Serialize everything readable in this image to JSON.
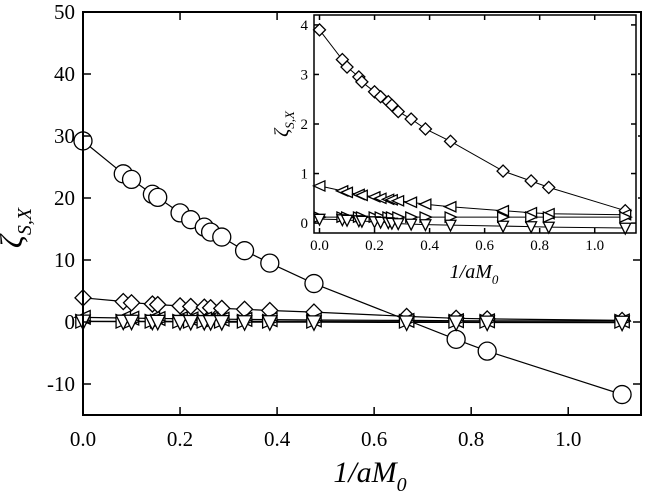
{
  "chart_data": [
    {
      "type": "scatter",
      "panel": "main",
      "xlabel": "1/aM",
      "xlabel_sub": "0",
      "ylabel": "ζ",
      "ylabel_sub": "S,X",
      "xlim": [
        0.0,
        1.15
      ],
      "ylim": [
        -15,
        50
      ],
      "xticks": [
        0.0,
        0.2,
        0.4,
        0.6,
        0.8,
        1.0
      ],
      "xtick_labels": [
        "0.0",
        "0.2",
        "0.4",
        "0.6",
        "0.8",
        "1.0"
      ],
      "yticks": [
        -10,
        0,
        10,
        20,
        30,
        40,
        50
      ],
      "ytick_labels": [
        "-10",
        "0",
        "10",
        "20",
        "30",
        "40",
        "50"
      ],
      "series": [
        {
          "name": "circle",
          "marker": "circle",
          "x": [
            0.0,
            0.083,
            0.1,
            0.143,
            0.154,
            0.2,
            0.222,
            0.25,
            0.263,
            0.286,
            0.333,
            0.385,
            0.476,
            0.769,
            0.833,
            1.111
          ],
          "y": [
            29.2,
            23.9,
            23.0,
            20.6,
            20.1,
            17.6,
            16.5,
            15.3,
            14.5,
            13.7,
            11.5,
            9.5,
            6.2,
            -2.8,
            -4.7,
            -11.7
          ]
        },
        {
          "name": "diamond",
          "marker": "diamond",
          "x": [
            0.0,
            0.083,
            0.1,
            0.143,
            0.154,
            0.2,
            0.222,
            0.25,
            0.263,
            0.286,
            0.333,
            0.385,
            0.476,
            0.667,
            0.769,
            0.833,
            1.111
          ],
          "y": [
            3.9,
            3.3,
            3.1,
            2.9,
            2.8,
            2.6,
            2.5,
            2.4,
            2.3,
            2.2,
            2.05,
            1.85,
            1.6,
            0.9,
            0.6,
            0.5,
            0.25
          ]
        },
        {
          "name": "left-triangle",
          "marker": "triangle-left",
          "x": [
            0.0,
            0.083,
            0.1,
            0.143,
            0.154,
            0.2,
            0.222,
            0.25,
            0.263,
            0.286,
            0.333,
            0.385,
            0.476,
            0.667,
            0.769,
            0.833,
            1.111
          ],
          "y": [
            0.75,
            0.65,
            0.62,
            0.58,
            0.56,
            0.53,
            0.5,
            0.48,
            0.47,
            0.45,
            0.42,
            0.38,
            0.33,
            0.25,
            0.21,
            0.19,
            0.17
          ]
        },
        {
          "name": "right-triangle",
          "marker": "triangle-right",
          "x": [
            0.0,
            0.083,
            0.1,
            0.143,
            0.154,
            0.2,
            0.222,
            0.25,
            0.263,
            0.286,
            0.333,
            0.385,
            0.476,
            0.667,
            0.769,
            0.833,
            1.111
          ],
          "y": [
            0.12,
            0.12,
            0.12,
            0.12,
            0.12,
            0.12,
            0.12,
            0.12,
            0.12,
            0.12,
            0.12,
            0.12,
            0.12,
            0.12,
            0.12,
            0.12,
            0.12
          ]
        },
        {
          "name": "down-triangle",
          "marker": "triangle-down",
          "x": [
            0.0,
            0.083,
            0.1,
            0.143,
            0.154,
            0.2,
            0.222,
            0.25,
            0.263,
            0.286,
            0.333,
            0.385,
            0.476,
            0.667,
            0.769,
            0.833,
            1.111
          ],
          "y": [
            0.08,
            0.07,
            0.06,
            0.05,
            0.04,
            0.03,
            0.02,
            0.01,
            0.0,
            -0.01,
            -0.02,
            -0.03,
            -0.04,
            -0.06,
            -0.07,
            -0.08,
            -0.1
          ]
        }
      ]
    },
    {
      "type": "scatter",
      "panel": "inset",
      "xlabel": "1/aM",
      "xlabel_sub": "0",
      "ylabel": "ζ",
      "ylabel_sub": "S,X",
      "xlim": [
        -0.02,
        1.15
      ],
      "ylim": [
        -0.2,
        4.2
      ],
      "xticks": [
        0.0,
        0.2,
        0.4,
        0.6,
        0.8,
        1.0
      ],
      "xtick_labels": [
        "0.0",
        "0.2",
        "0.4",
        "0.6",
        "0.8",
        "1.0"
      ],
      "yticks": [
        0,
        1,
        2,
        3,
        4
      ],
      "ytick_labels": [
        "0",
        "1",
        "2",
        "3",
        "4"
      ],
      "series": [
        {
          "name": "diamond",
          "marker": "diamond",
          "x": [
            0.0,
            0.083,
            0.1,
            0.143,
            0.154,
            0.2,
            0.222,
            0.25,
            0.263,
            0.286,
            0.333,
            0.385,
            0.476,
            0.667,
            0.769,
            0.833,
            1.111
          ],
          "y": [
            3.9,
            3.3,
            3.15,
            2.95,
            2.85,
            2.65,
            2.55,
            2.45,
            2.38,
            2.25,
            2.1,
            1.9,
            1.65,
            1.05,
            0.85,
            0.72,
            0.25
          ]
        },
        {
          "name": "left-triangle",
          "marker": "triangle-left",
          "x": [
            0.0,
            0.083,
            0.1,
            0.143,
            0.154,
            0.2,
            0.222,
            0.25,
            0.263,
            0.286,
            0.333,
            0.385,
            0.476,
            0.667,
            0.769,
            0.833,
            1.111
          ],
          "y": [
            0.75,
            0.65,
            0.62,
            0.58,
            0.56,
            0.53,
            0.5,
            0.48,
            0.47,
            0.45,
            0.42,
            0.38,
            0.33,
            0.25,
            0.21,
            0.19,
            0.17
          ]
        },
        {
          "name": "right-triangle",
          "marker": "triangle-right",
          "x": [
            0.0,
            0.083,
            0.1,
            0.143,
            0.154,
            0.2,
            0.222,
            0.25,
            0.263,
            0.286,
            0.333,
            0.385,
            0.476,
            0.667,
            0.769,
            0.833,
            1.111
          ],
          "y": [
            0.12,
            0.12,
            0.12,
            0.12,
            0.12,
            0.12,
            0.12,
            0.12,
            0.12,
            0.12,
            0.12,
            0.12,
            0.12,
            0.12,
            0.12,
            0.12,
            0.12
          ]
        },
        {
          "name": "down-triangle",
          "marker": "triangle-down",
          "x": [
            0.0,
            0.083,
            0.1,
            0.143,
            0.154,
            0.2,
            0.222,
            0.25,
            0.263,
            0.286,
            0.333,
            0.385,
            0.476,
            0.667,
            0.769,
            0.833,
            1.111
          ],
          "y": [
            0.08,
            0.07,
            0.06,
            0.05,
            0.04,
            0.03,
            0.02,
            0.01,
            0.0,
            -0.01,
            -0.02,
            -0.03,
            -0.04,
            -0.06,
            -0.07,
            -0.08,
            -0.1
          ]
        }
      ]
    }
  ]
}
